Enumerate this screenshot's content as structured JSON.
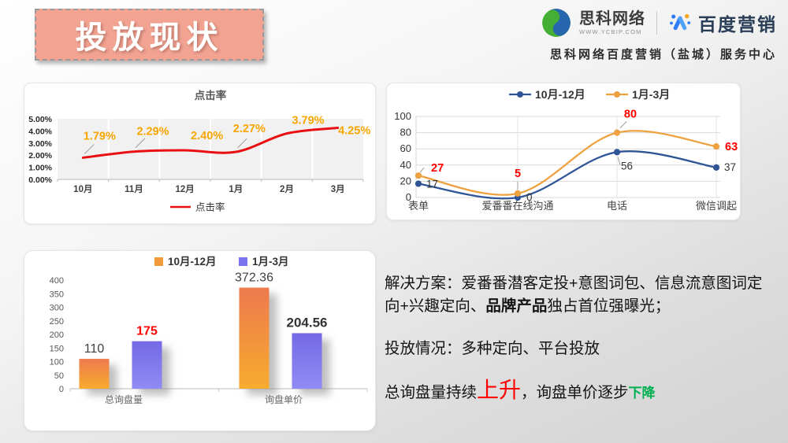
{
  "slide": {
    "title": "投放现状"
  },
  "header": {
    "brand1_name": "思科网络",
    "brand1_url": "WWW.YCBIP.COM",
    "brand2_name": "百度营销",
    "subtitle": "思科网络百度营销（盐城）服务中心"
  },
  "icons": {
    "brand1": "green-blue-swirl-icon",
    "brand2": "baidu-marketing-icon"
  },
  "chart_data": [
    {
      "id": "ctr",
      "type": "line",
      "title": "点击率",
      "categories": [
        "10月",
        "11月",
        "12月",
        "1月",
        "2月",
        "3月"
      ],
      "series": [
        {
          "name": "点击率",
          "color": "#e81013",
          "values": [
            1.79,
            2.29,
            2.4,
            2.27,
            3.79,
            4.25
          ]
        }
      ],
      "data_labels": [
        "1.79%",
        "2.29%",
        "2.40%",
        "2.27%",
        "3.79%",
        "4.25%"
      ],
      "data_label_color": "#f7a600",
      "ylim": [
        0,
        5
      ],
      "yticks": [
        "5.00%",
        "4.00%",
        "3.00%",
        "2.00%",
        "1.00%",
        "0.00%"
      ],
      "grid": "vertical-white-on-gray",
      "legend_position": "bottom"
    },
    {
      "id": "channels",
      "type": "line",
      "categories": [
        "表单",
        "爱番番在线沟通",
        "电话",
        "微信调起"
      ],
      "series": [
        {
          "name": "10月-12月",
          "color": "#2f5597",
          "label_color": "#333333",
          "values": [
            17,
            0,
            56,
            37
          ]
        },
        {
          "name": "1月-3月",
          "color": "#eda13f",
          "label_color": "#ff0000",
          "values": [
            27,
            5,
            80,
            63
          ]
        }
      ],
      "ylim": [
        0,
        100
      ],
      "yticks": [
        100,
        80,
        60,
        40,
        20,
        0
      ],
      "grid": "horizontal",
      "legend_position": "top"
    },
    {
      "id": "inquiry",
      "type": "bar",
      "categories": [
        "总询盘量",
        "询盘单价"
      ],
      "series": [
        {
          "name": "10月-12月",
          "color_top": "#ee7a4e",
          "color_bottom": "#f7ac2e",
          "legend_color": "#f09a3c",
          "values": [
            110,
            372.36
          ],
          "labels": [
            "110",
            "372.36"
          ],
          "label_colors": [
            "#404040",
            "#404040"
          ],
          "label_bold": [
            false,
            false
          ]
        },
        {
          "name": "1月-3月",
          "color_top": "#7569e6",
          "color_bottom": "#918bf4",
          "legend_color": "#7b72ee",
          "values": [
            175,
            204.56
          ],
          "labels": [
            "175",
            "204.56"
          ],
          "label_colors": [
            "#ff0000",
            "#333333"
          ],
          "label_bold": [
            true,
            true
          ]
        }
      ],
      "ylim": [
        0,
        400
      ],
      "ytick_step": 50,
      "grid": "off",
      "legend_position": "top"
    }
  ],
  "insights": {
    "p1_prefix": "解决方案：爱番番潜客定投+意图词包、信息流意图词定向+兴趣定向、",
    "p1_bold": "品牌产品",
    "p1_suffix": "独占首位强曝光；",
    "p2": "投放情况：多种定向、平台投放",
    "p3_a": "总询盘量持续",
    "p3_up": "上升",
    "p3_b": "，询盘单价逐步",
    "p3_down": "下降",
    "up_color": "#ff0000",
    "down_color": "#00b050"
  }
}
